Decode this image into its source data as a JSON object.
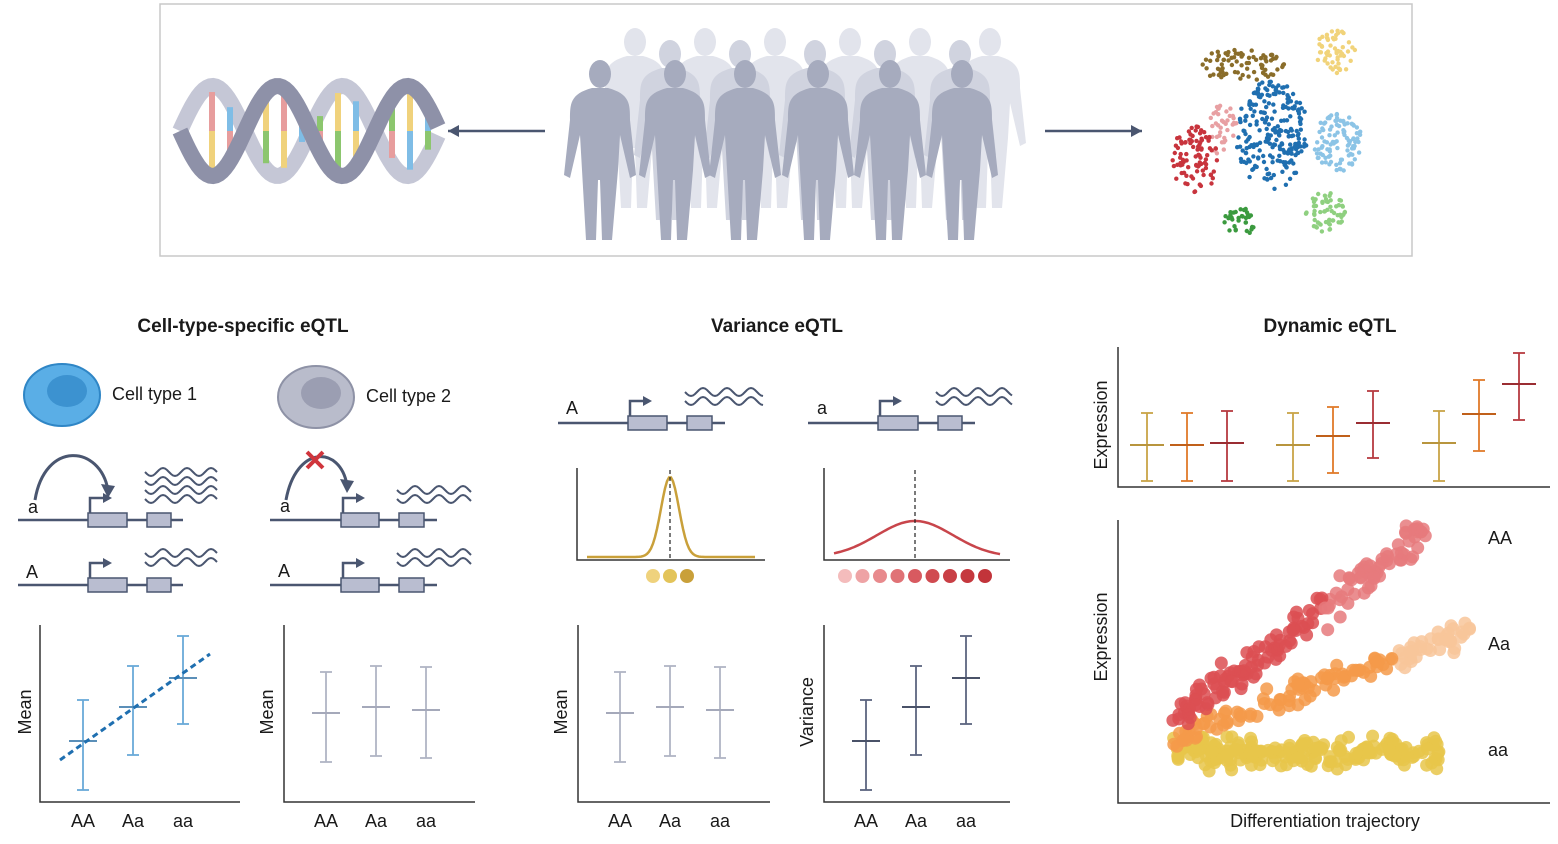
{
  "panels": [
    {
      "title": "Cell-type-specific eQTL",
      "cell_types": [
        "Cell type 1",
        "Cell type 2"
      ],
      "alleles": [
        [
          "a",
          "A"
        ],
        [
          "a",
          "A"
        ]
      ],
      "plots": [
        {
          "y_label": "Mean",
          "categories": [
            "AA",
            "Aa",
            "aa"
          ]
        },
        {
          "y_label": "Mean",
          "categories": [
            "AA",
            "Aa",
            "aa"
          ]
        }
      ]
    },
    {
      "title": "Variance eQTL",
      "alleles": [
        "A",
        "a"
      ],
      "plots": [
        {
          "y_label": "Mean",
          "categories": [
            "AA",
            "Aa",
            "aa"
          ]
        },
        {
          "y_label": "Variance",
          "categories": [
            "AA",
            "Aa",
            "aa"
          ]
        }
      ]
    },
    {
      "title": "Dynamic eQTL",
      "y_label_top": "Expression",
      "y_label_bottom": "Expression",
      "x_label": "Differentiation trajectory",
      "genotypes": [
        "AA",
        "Aa",
        "aa"
      ]
    }
  ]
}
